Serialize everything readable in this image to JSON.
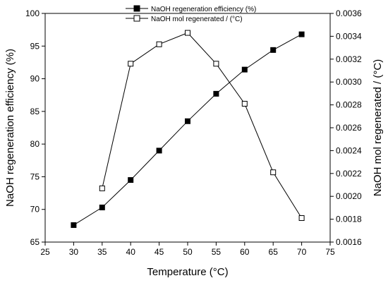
{
  "chart_data": {
    "type": "line",
    "xlabel": "Temperature (°C)",
    "ylabel_left": "NaOH regeneration efficiency (%)",
    "ylabel_right": "NaOH mol regenerated / (°C)",
    "xlim": [
      25,
      75
    ],
    "xticks": [
      "25",
      "30",
      "35",
      "40",
      "45",
      "50",
      "55",
      "60",
      "65",
      "70",
      "75"
    ],
    "ylim_left": [
      65,
      100
    ],
    "yticks_left": [
      "65",
      "70",
      "75",
      "80",
      "85",
      "90",
      "95",
      "100"
    ],
    "ylim_right": [
      0.0016,
      0.0036
    ],
    "yticks_right": [
      "0.0016",
      "0.0018",
      "0.0020",
      "0.0022",
      "0.0024",
      "0.0026",
      "0.0028",
      "0.0030",
      "0.0032",
      "0.0034",
      "0.0036"
    ],
    "legend_position": "top-center",
    "grid": false,
    "series": [
      {
        "name": "NaOH regeneration efficiency (%)",
        "axis": "left",
        "marker": "filled-square",
        "x": [
          30,
          35,
          40,
          45,
          50,
          55,
          60,
          65,
          70
        ],
        "values": [
          67.6,
          70.3,
          74.5,
          79.0,
          83.5,
          87.7,
          91.4,
          94.4,
          96.8
        ]
      },
      {
        "name": "NaOH mol regenerated / (°C)",
        "axis": "right",
        "marker": "open-square",
        "x": [
          35,
          40,
          45,
          50,
          55,
          60,
          65,
          70
        ],
        "values": [
          0.00207,
          0.00316,
          0.00333,
          0.00343,
          0.00316,
          0.00281,
          0.00221,
          0.00181
        ]
      }
    ],
    "colors": {
      "line": "#000000",
      "marker": "#000000"
    }
  }
}
